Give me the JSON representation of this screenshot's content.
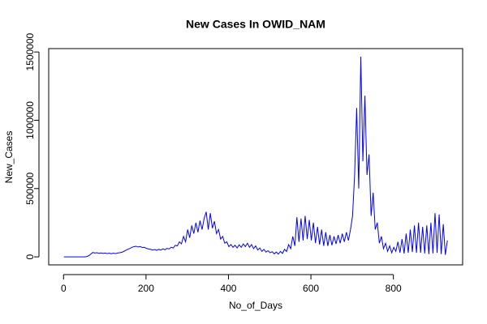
{
  "chart_data": {
    "type": "line",
    "title": "New Cases In OWID_NAM",
    "x_label": "No_of_Days",
    "y_label": "New_Cases",
    "color": "#0000ff",
    "grid": false,
    "x": [
      1,
      6,
      11,
      16,
      21,
      26,
      31,
      36,
      41,
      46,
      51,
      56,
      61,
      66,
      71,
      76,
      81,
      86,
      91,
      96,
      101,
      106,
      111,
      116,
      121,
      126,
      131,
      136,
      141,
      146,
      151,
      156,
      161,
      166,
      171,
      176,
      181,
      186,
      191,
      196,
      201,
      206,
      211,
      216,
      221,
      226,
      231,
      236,
      241,
      246,
      251,
      256,
      261,
      266,
      271,
      276,
      281,
      286,
      291,
      296,
      301,
      306,
      311,
      316,
      321,
      326,
      331,
      336,
      341,
      346,
      351,
      356,
      361,
      366,
      371,
      376,
      381,
      386,
      391,
      396,
      401,
      406,
      411,
      416,
      421,
      426,
      431,
      436,
      441,
      446,
      451,
      456,
      461,
      466,
      471,
      476,
      481,
      486,
      491,
      496,
      501,
      506,
      511,
      516,
      521,
      526,
      531,
      536,
      541,
      546,
      551,
      556,
      561,
      566,
      571,
      576,
      581,
      586,
      591,
      596,
      601,
      606,
      611,
      616,
      621,
      626,
      631,
      636,
      641,
      646,
      651,
      656,
      661,
      666,
      671,
      676,
      681,
      686,
      691,
      696,
      701,
      706,
      711,
      716,
      721,
      726,
      731,
      736,
      741,
      746,
      751,
      756,
      761,
      766,
      771,
      776,
      781,
      786,
      791,
      796,
      801,
      806,
      811,
      816,
      821,
      826,
      831,
      836,
      841,
      846,
      851,
      856,
      861,
      866,
      871,
      876,
      881,
      886,
      891,
      896,
      901,
      906,
      911,
      916,
      921,
      926,
      931
    ],
    "values": [
      0,
      0,
      0,
      0,
      0,
      0,
      0,
      0,
      0,
      0,
      0,
      2000,
      8000,
      20000,
      32000,
      28000,
      30000,
      26000,
      29000,
      25000,
      28000,
      24000,
      27000,
      23000,
      27000,
      24000,
      28000,
      30000,
      33000,
      40000,
      48000,
      55000,
      62000,
      70000,
      75000,
      78000,
      72000,
      76000,
      68000,
      70000,
      62000,
      58000,
      55000,
      50000,
      54000,
      48000,
      55000,
      50000,
      58000,
      52000,
      62000,
      58000,
      70000,
      65000,
      85000,
      80000,
      110000,
      95000,
      150000,
      110000,
      200000,
      140000,
      230000,
      170000,
      250000,
      180000,
      265000,
      200000,
      280000,
      330000,
      200000,
      320000,
      210000,
      260000,
      170000,
      200000,
      130000,
      150000,
      100000,
      110000,
      75000,
      90000,
      70000,
      85000,
      65000,
      88000,
      70000,
      95000,
      75000,
      100000,
      70000,
      90000,
      60000,
      80000,
      50000,
      65000,
      40000,
      55000,
      35000,
      45000,
      30000,
      38000,
      22000,
      35000,
      20000,
      40000,
      25000,
      55000,
      40000,
      90000,
      60000,
      150000,
      80000,
      290000,
      110000,
      280000,
      120000,
      300000,
      130000,
      270000,
      120000,
      250000,
      100000,
      220000,
      90000,
      200000,
      80000,
      180000,
      80000,
      160000,
      85000,
      150000,
      95000,
      160000,
      100000,
      170000,
      110000,
      180000,
      120000,
      200000,
      300000,
      600000,
      1090000,
      500000,
      1466000,
      700000,
      1180000,
      600000,
      750000,
      300000,
      470000,
      200000,
      250000,
      100000,
      150000,
      60000,
      100000,
      40000,
      80000,
      30000,
      70000,
      40000,
      110000,
      30000,
      130000,
      25000,
      170000,
      30000,
      200000,
      35000,
      230000,
      30000,
      250000,
      30000,
      220000,
      25000,
      230000,
      20000,
      250000,
      25000,
      320000,
      30000,
      310000,
      20000,
      240000,
      15000,
      120000
    ],
    "xlim": [
      -36,
      968
    ],
    "ylim": [
      -58640,
      1524640
    ],
    "xticks": [
      0,
      200,
      400,
      600,
      800
    ],
    "yticks": [
      0,
      500000,
      1000000,
      1500000
    ]
  }
}
